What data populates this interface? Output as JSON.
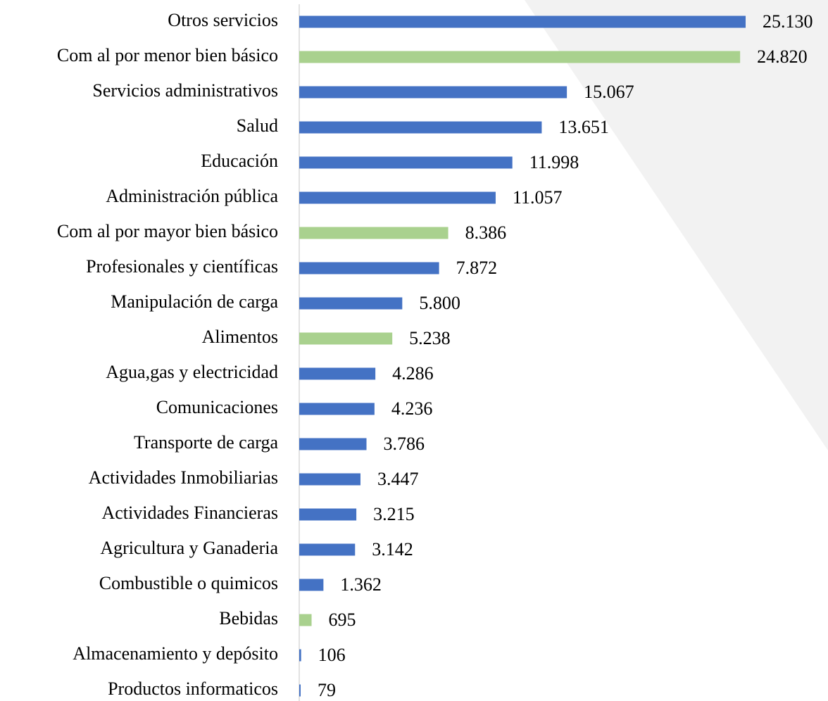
{
  "chart_data": {
    "type": "barh",
    "categories": [
      "Otros servicios",
      "Com al por menor bien básico",
      "Servicios administrativos",
      "Salud",
      "Educación",
      "Administración pública",
      "Com al por mayor bien básico",
      "Profesionales y científicas",
      "Manipulación de carga",
      "Alimentos",
      "Agua,gas y electricidad",
      "Comunicaciones",
      "Transporte de carga",
      "Actividades Inmobiliarias",
      "Actividades Financieras",
      "Agricultura y Ganaderia",
      "Combustible o quimicos",
      "Bebidas",
      "Almacenamiento y depósito",
      "Productos informaticos"
    ],
    "values": [
      25130,
      24820,
      15067,
      13651,
      11998,
      11057,
      8386,
      7872,
      5800,
      5238,
      4286,
      4236,
      3786,
      3447,
      3215,
      3142,
      1362,
      695,
      106,
      79
    ],
    "value_labels": [
      "25.130",
      "24.820",
      "15.067",
      "13.651",
      "11.998",
      "11.057",
      "8.386",
      "7.872",
      "5.800",
      "5.238",
      "4.286",
      "4.236",
      "3.786",
      "3.447",
      "3.215",
      "3.142",
      "1.362",
      "695",
      "106",
      "79"
    ],
    "colors": [
      "#4472c4",
      "#a9d18e",
      "#4472c4",
      "#4472c4",
      "#4472c4",
      "#4472c4",
      "#a9d18e",
      "#4472c4",
      "#4472c4",
      "#a9d18e",
      "#4472c4",
      "#4472c4",
      "#4472c4",
      "#4472c4",
      "#4472c4",
      "#4472c4",
      "#4472c4",
      "#a9d18e",
      "#4472c4",
      "#4472c4"
    ]
  }
}
